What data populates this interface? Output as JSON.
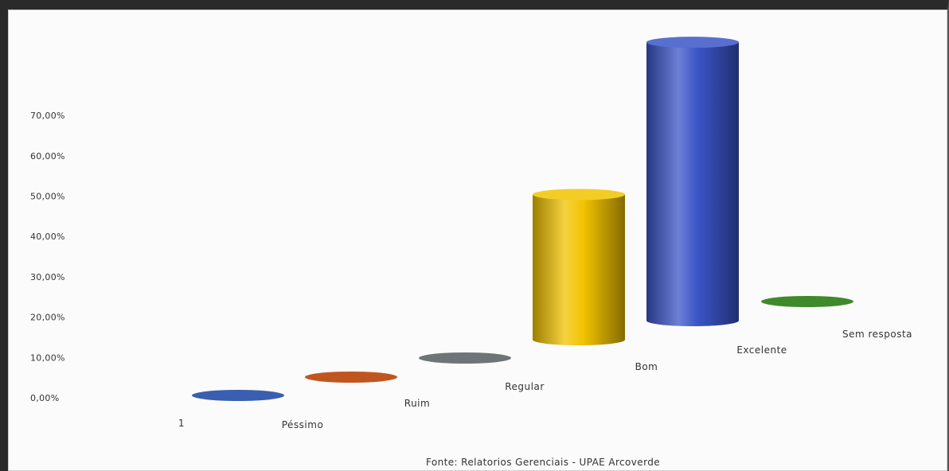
{
  "chart_data": {
    "type": "bar",
    "style": "3d-cylinder",
    "categories": [
      "1",
      "Péssimo",
      "Ruim",
      "Regular",
      "Bom",
      "Excelente",
      "Sem resposta"
    ],
    "values": [
      0,
      0,
      0,
      0,
      36,
      69,
      0
    ],
    "colors": [
      "#3a5fb0",
      "#3a5fb0",
      "#c0561f",
      "#6f7577",
      "#f2c300",
      "#3b55c8",
      "#3f8a2a"
    ],
    "y_tick_labels": [
      "0,00%",
      "10,00%",
      "20,00%",
      "30,00%",
      "40,00%",
      "50,00%",
      "60,00%",
      "70,00%"
    ],
    "ylim": [
      0,
      70
    ],
    "source": "Fonte: Relatorios Gerenciais  - UPAE Arcoverde",
    "grid": false,
    "legend": "none"
  }
}
